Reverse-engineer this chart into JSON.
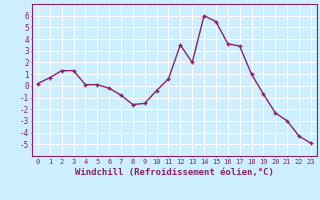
{
  "x": [
    0,
    1,
    2,
    3,
    4,
    5,
    6,
    7,
    8,
    9,
    10,
    11,
    12,
    13,
    14,
    15,
    16,
    17,
    18,
    19,
    20,
    21,
    22,
    23
  ],
  "y": [
    0.2,
    0.7,
    1.3,
    1.3,
    0.1,
    0.1,
    -0.2,
    -0.8,
    -1.6,
    -1.5,
    -0.4,
    0.6,
    3.5,
    2.0,
    6.0,
    5.5,
    3.6,
    3.4,
    1.0,
    -0.7,
    -2.3,
    -3.0,
    -4.3,
    -4.9
  ],
  "line_color": "#882266",
  "marker": "+",
  "marker_size": 3,
  "linewidth": 1.0,
  "xlabel": "Windchill (Refroidissement éolien,°C)",
  "xlabel_fontsize": 6.5,
  "ylim": [
    -6,
    7
  ],
  "xlim": [
    -0.5,
    23.5
  ],
  "yticks": [
    -5,
    -4,
    -3,
    -2,
    -1,
    0,
    1,
    2,
    3,
    4,
    5,
    6
  ],
  "xticks": [
    0,
    1,
    2,
    3,
    4,
    5,
    6,
    7,
    8,
    9,
    10,
    11,
    12,
    13,
    14,
    15,
    16,
    17,
    18,
    19,
    20,
    21,
    22,
    23
  ],
  "bg_color": "#cceeff",
  "grid_color": "#ffffff",
  "tick_color": "#882266",
  "tick_label_color": "#882266",
  "axes_edge_color": "#882266"
}
